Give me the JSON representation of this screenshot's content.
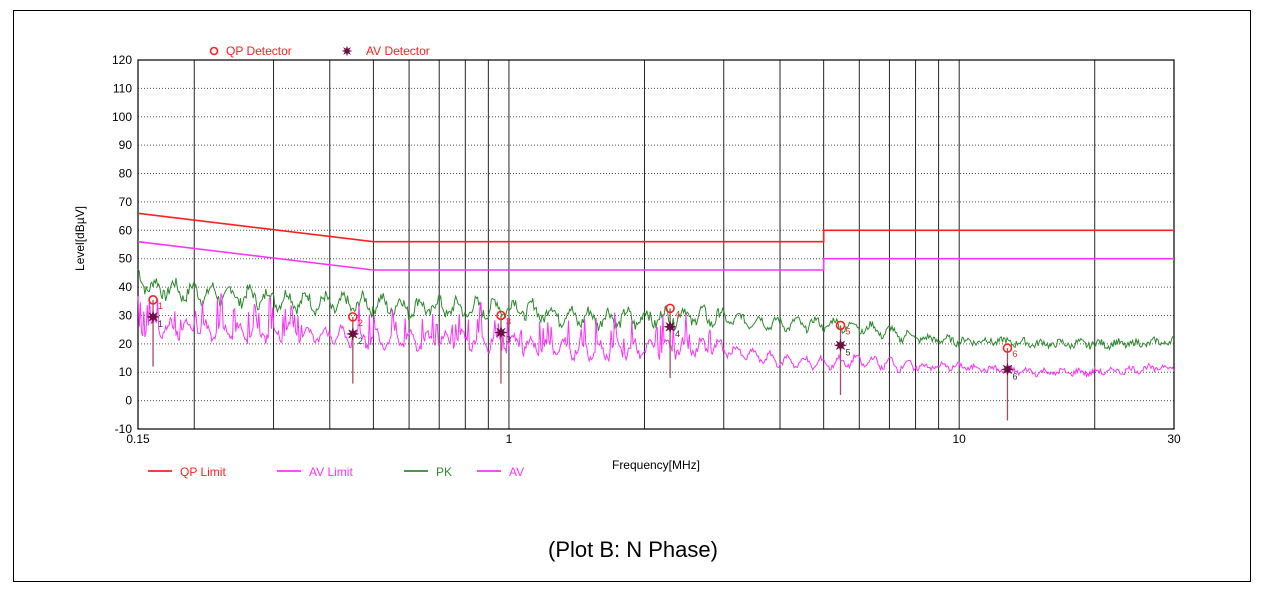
{
  "caption": "(Plot B: N Phase)",
  "chart_data": {
    "type": "line",
    "xlabel": "Frequency[MHz]",
    "ylabel": "Level[dBµV]",
    "x_scale": "log",
    "xlim": [
      0.15,
      30
    ],
    "ylim": [
      -10,
      120
    ],
    "x_ticks": [
      0.15,
      1,
      10,
      30
    ],
    "x_tick_labels": [
      "0.15",
      "1",
      "10",
      "30"
    ],
    "y_ticks": [
      -10,
      0,
      10,
      20,
      30,
      40,
      50,
      60,
      70,
      80,
      90,
      100,
      110,
      120
    ],
    "grid": true,
    "colors": {
      "qp_limit": "#ff2020",
      "av_limit": "#ff33ff",
      "pk": "#2e8b2e",
      "av": "#ff33ff",
      "qp_marker": "#ff2020",
      "av_marker": "#6b1040",
      "marker_stem": "#a05060"
    },
    "detector_legend": [
      {
        "name": "QP Detector",
        "symbol": "circle"
      },
      {
        "name": "AV Detector",
        "symbol": "star"
      }
    ],
    "series": [
      {
        "name": "QP Limit",
        "key": "qp_limit",
        "points": [
          [
            0.15,
            66
          ],
          [
            0.5,
            56
          ],
          [
            5,
            56
          ],
          [
            5,
            60
          ],
          [
            30,
            60
          ]
        ]
      },
      {
        "name": "AV Limit",
        "key": "av_limit",
        "points": [
          [
            0.15,
            56
          ],
          [
            0.5,
            46
          ],
          [
            5,
            46
          ],
          [
            5,
            50
          ],
          [
            30,
            50
          ]
        ]
      },
      {
        "name": "PK",
        "key": "pk",
        "points": [
          [
            0.15,
            44
          ],
          [
            0.16,
            40
          ],
          [
            0.18,
            39
          ],
          [
            0.2,
            38
          ],
          [
            0.25,
            37
          ],
          [
            0.3,
            36
          ],
          [
            0.35,
            35
          ],
          [
            0.4,
            34
          ],
          [
            0.5,
            34
          ],
          [
            0.6,
            33
          ],
          [
            0.7,
            33
          ],
          [
            0.8,
            32
          ],
          [
            1,
            33
          ],
          [
            1.2,
            31
          ],
          [
            1.5,
            29
          ],
          [
            2,
            29
          ],
          [
            2.5,
            30
          ],
          [
            3,
            29
          ],
          [
            4,
            27
          ],
          [
            5,
            27
          ],
          [
            6,
            26
          ],
          [
            7,
            24
          ],
          [
            8,
            22
          ],
          [
            10,
            21
          ],
          [
            12,
            21
          ],
          [
            15,
            20
          ],
          [
            20,
            20
          ],
          [
            25,
            20
          ],
          [
            30,
            21
          ]
        ]
      },
      {
        "name": "AV",
        "key": "av",
        "points": [
          [
            0.15,
            26
          ],
          [
            0.2,
            25
          ],
          [
            0.3,
            24
          ],
          [
            0.4,
            23
          ],
          [
            0.5,
            22
          ],
          [
            0.6,
            21
          ],
          [
            0.8,
            21
          ],
          [
            1,
            20
          ],
          [
            1.2,
            19
          ],
          [
            1.5,
            18
          ],
          [
            2,
            18
          ],
          [
            2.5,
            19
          ],
          [
            3,
            18
          ],
          [
            4,
            14
          ],
          [
            5,
            13
          ],
          [
            6,
            14
          ],
          [
            7,
            13
          ],
          [
            8,
            12
          ],
          [
            10,
            12
          ],
          [
            12,
            11
          ],
          [
            15,
            10
          ],
          [
            20,
            10
          ],
          [
            25,
            11
          ],
          [
            30,
            12
          ]
        ]
      }
    ],
    "markers": [
      {
        "label": "1",
        "freq": 0.162,
        "qp": 35.5,
        "av": 29.5,
        "stem_min": 12
      },
      {
        "label": "2",
        "freq": 0.45,
        "qp": 29.5,
        "av": 23.5,
        "stem_min": 6
      },
      {
        "label": "3",
        "freq": 0.96,
        "qp": 30,
        "av": 24,
        "stem_min": 6
      },
      {
        "label": "4",
        "freq": 2.28,
        "qp": 32.5,
        "av": 26,
        "stem_min": 8
      },
      {
        "label": "5",
        "freq": 5.45,
        "qp": 26.5,
        "av": 19.5,
        "stem_min": 2
      },
      {
        "label": "6",
        "freq": 12.8,
        "qp": 18.5,
        "av": 11,
        "stem_min": -7
      }
    ]
  }
}
